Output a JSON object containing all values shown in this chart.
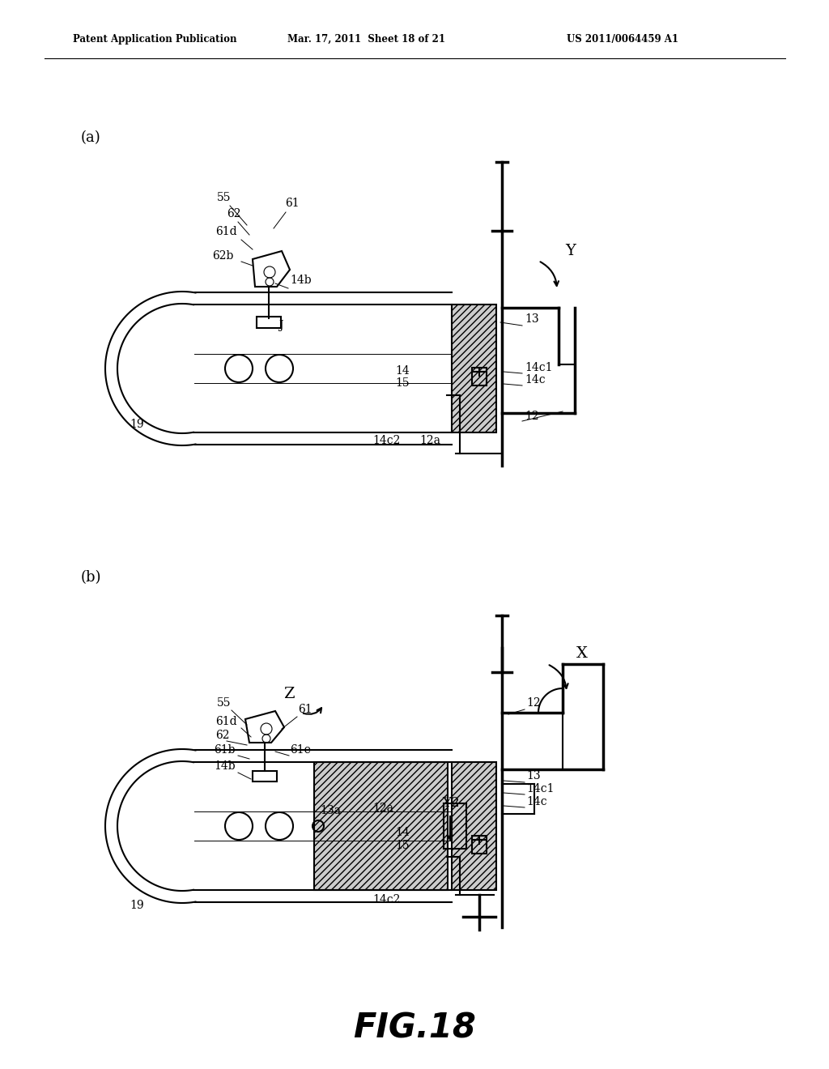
{
  "background_color": "#ffffff",
  "header_left": "Patent Application Publication",
  "header_mid": "Mar. 17, 2011  Sheet 18 of 21",
  "header_right": "US 2011/0064459 A1",
  "figure_label": "FIG.18",
  "sub_a_label": "(a)",
  "sub_b_label": "(b)",
  "text_color": "#000000",
  "line_color": "#000000"
}
